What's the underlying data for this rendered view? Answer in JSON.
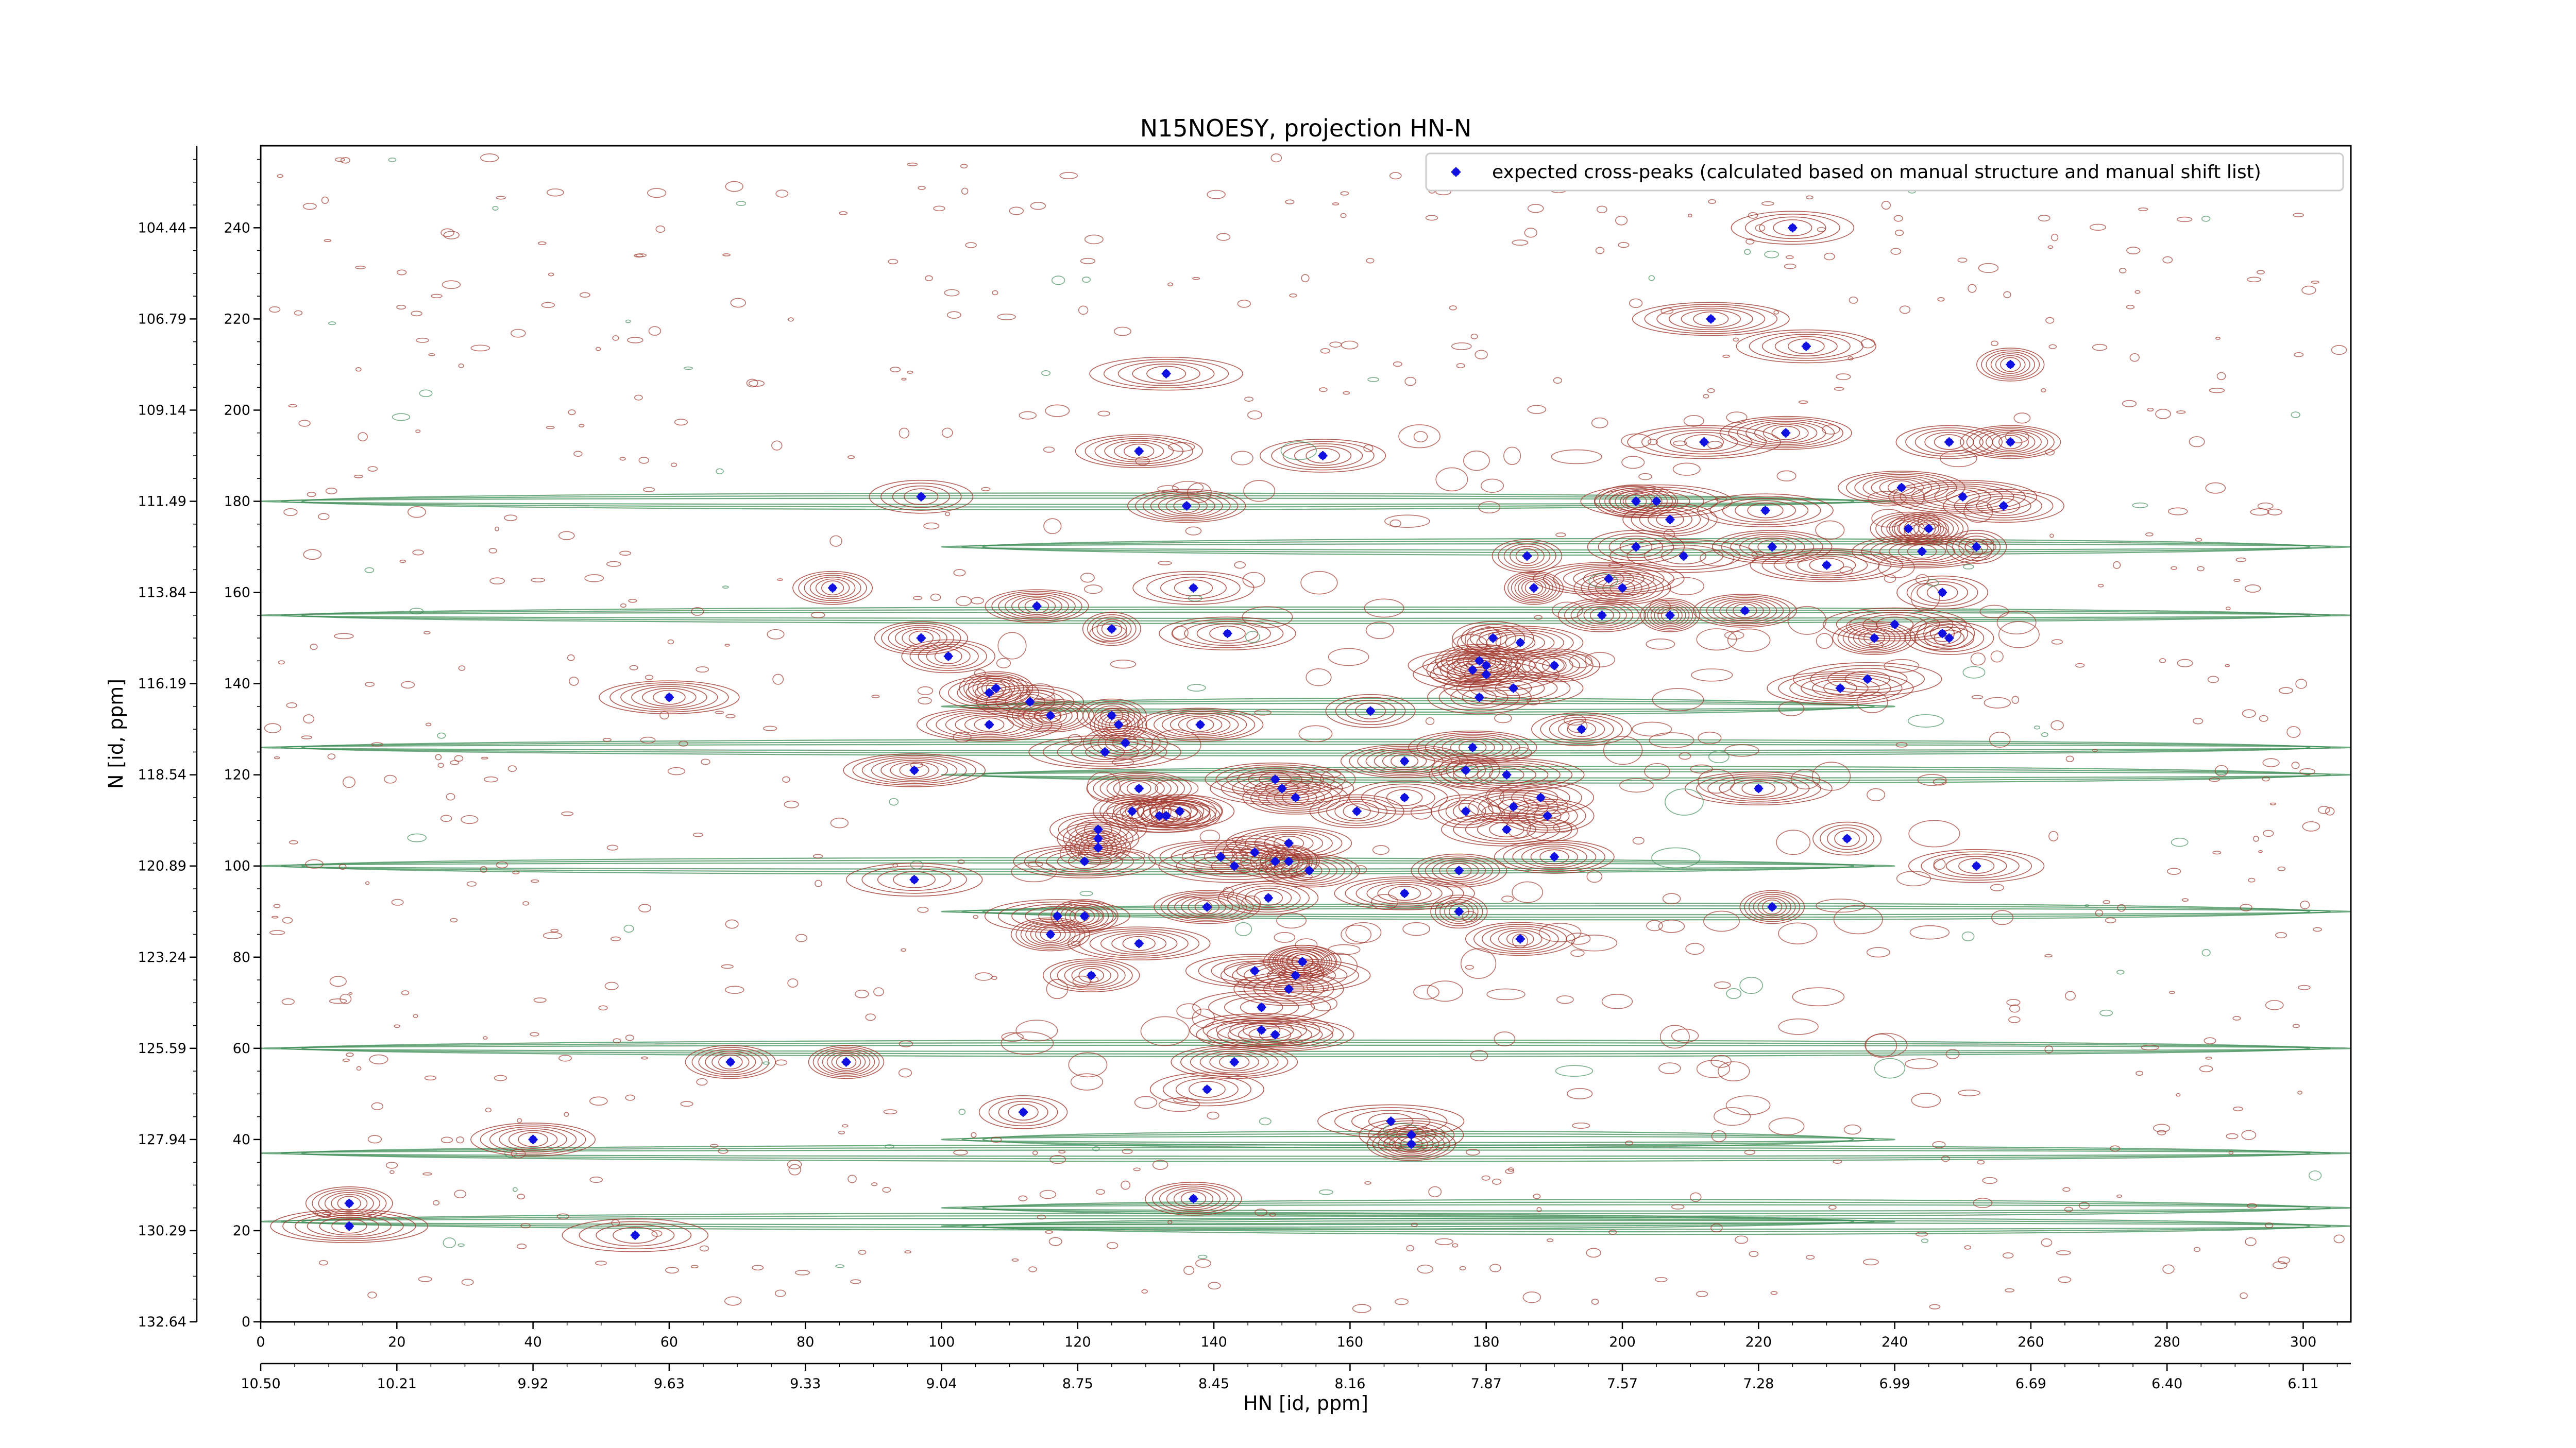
{
  "chart_data": {
    "type": "scatter",
    "title": "N15NOESY, projection HN-N",
    "xlabel": "HN [id, ppm]",
    "ylabel": "N [id, ppm]",
    "xlim": [
      0,
      307
    ],
    "ylim": [
      0,
      258
    ],
    "x_index_ticks": [
      0,
      20,
      40,
      60,
      80,
      100,
      120,
      140,
      160,
      180,
      200,
      220,
      240,
      260,
      280,
      300
    ],
    "x_ppm_tick_labels": [
      "10.50",
      "10.21",
      "9.92",
      "9.63",
      "9.33",
      "9.04",
      "8.75",
      "8.45",
      "8.16",
      "7.87",
      "7.57",
      "7.28",
      "6.99",
      "6.69",
      "6.40",
      "6.11"
    ],
    "y_index_ticks": [
      0,
      20,
      40,
      60,
      80,
      100,
      120,
      140,
      160,
      180,
      200,
      220,
      240
    ],
    "y_ppm_tick_labels": [
      "132.64",
      "130.29",
      "127.94",
      "125.59",
      "123.24",
      "120.89",
      "118.54",
      "116.19",
      "113.84",
      "111.49",
      "109.14",
      "106.79",
      "104.44"
    ],
    "legend": {
      "position": "top-right",
      "entries": [
        "expected cross-peaks (calculated based on manual structure and manual shift list)"
      ]
    },
    "colors": {
      "positive_contour": "#a0372c",
      "negative_contour": "#3f8d57",
      "peak_marker": "#1010e0"
    },
    "grid": false,
    "series": [
      {
        "name": "expected cross-peaks (calculated based on manual structure and manual shift list)",
        "points": [
          [
            13,
            26
          ],
          [
            13,
            21
          ],
          [
            40,
            40
          ],
          [
            55,
            19
          ],
          [
            60,
            137
          ],
          [
            69,
            57
          ],
          [
            86,
            57
          ],
          [
            84,
            161
          ],
          [
            96,
            97
          ],
          [
            96,
            121
          ],
          [
            97,
            181
          ],
          [
            97,
            150
          ],
          [
            101,
            146
          ],
          [
            107,
            131
          ],
          [
            107,
            138
          ],
          [
            108,
            139
          ],
          [
            112,
            46
          ],
          [
            113,
            136
          ],
          [
            114,
            157
          ],
          [
            116,
            85
          ],
          [
            117,
            89
          ],
          [
            116,
            133
          ],
          [
            121,
            101
          ],
          [
            121,
            89
          ],
          [
            123,
            104
          ],
          [
            122,
            76
          ],
          [
            123,
            106
          ],
          [
            123,
            108
          ],
          [
            124,
            125
          ],
          [
            125,
            152
          ],
          [
            125,
            133
          ],
          [
            126,
            131
          ],
          [
            127,
            127
          ],
          [
            128,
            112
          ],
          [
            129,
            117
          ],
          [
            129,
            83
          ],
          [
            129,
            191
          ],
          [
            132,
            111
          ],
          [
            133,
            111
          ],
          [
            135,
            112
          ],
          [
            133,
            208
          ],
          [
            135,
            112
          ],
          [
            136,
            179
          ],
          [
            137,
            161
          ],
          [
            137,
            27
          ],
          [
            138,
            131
          ],
          [
            142,
            151
          ],
          [
            139,
            91
          ],
          [
            139,
            51
          ],
          [
            141,
            102
          ],
          [
            143,
            57
          ],
          [
            143,
            100
          ],
          [
            146,
            103
          ],
          [
            146,
            77
          ],
          [
            147,
            64
          ],
          [
            147,
            69
          ],
          [
            148,
            93
          ],
          [
            149,
            101
          ],
          [
            149,
            119
          ],
          [
            149,
            63
          ],
          [
            150,
            117
          ],
          [
            151,
            101
          ],
          [
            151,
            73
          ],
          [
            151,
            105
          ],
          [
            152,
            115
          ],
          [
            152,
            76
          ],
          [
            153,
            79
          ],
          [
            153,
            79
          ],
          [
            154,
            99
          ],
          [
            156,
            190
          ],
          [
            161,
            112
          ],
          [
            163,
            134
          ],
          [
            168,
            115
          ],
          [
            168,
            123
          ],
          [
            168,
            94
          ],
          [
            169,
            39
          ],
          [
            169,
            41
          ],
          [
            166,
            44
          ],
          [
            176,
            90
          ],
          [
            176,
            99
          ],
          [
            177,
            112
          ],
          [
            177,
            121
          ],
          [
            178,
            126
          ],
          [
            178,
            143
          ],
          [
            179,
            137
          ],
          [
            179,
            145
          ],
          [
            180,
            142
          ],
          [
            180,
            144
          ],
          [
            181,
            150
          ],
          [
            183,
            120
          ],
          [
            183,
            108
          ],
          [
            184,
            139
          ],
          [
            184,
            113
          ],
          [
            185,
            84
          ],
          [
            185,
            149
          ],
          [
            186,
            168
          ],
          [
            187,
            161
          ],
          [
            188,
            115
          ],
          [
            189,
            111
          ],
          [
            190,
            102
          ],
          [
            190,
            144
          ],
          [
            194,
            130
          ],
          [
            197,
            155
          ],
          [
            198,
            163
          ],
          [
            200,
            161
          ],
          [
            202,
            180
          ],
          [
            202,
            170
          ],
          [
            205,
            180
          ],
          [
            207,
            155
          ],
          [
            207,
            176
          ],
          [
            209,
            168
          ],
          [
            212,
            193
          ],
          [
            213,
            220
          ],
          [
            218,
            156
          ],
          [
            220,
            117
          ],
          [
            221,
            178
          ],
          [
            222,
            170
          ],
          [
            222,
            91
          ],
          [
            224,
            195
          ],
          [
            225,
            240
          ],
          [
            227,
            214
          ],
          [
            230,
            166
          ],
          [
            232,
            139
          ],
          [
            233,
            106
          ],
          [
            236,
            141
          ],
          [
            237,
            150
          ],
          [
            240,
            153
          ],
          [
            241,
            183
          ],
          [
            242,
            174
          ],
          [
            244,
            169
          ],
          [
            245,
            174
          ],
          [
            247,
            151
          ],
          [
            247,
            160
          ],
          [
            248,
            193
          ],
          [
            248,
            150
          ],
          [
            250,
            181
          ],
          [
            252,
            170
          ],
          [
            252,
            100
          ],
          [
            256,
            179
          ],
          [
            257,
            210
          ],
          [
            257,
            193
          ]
        ]
      }
    ]
  }
}
